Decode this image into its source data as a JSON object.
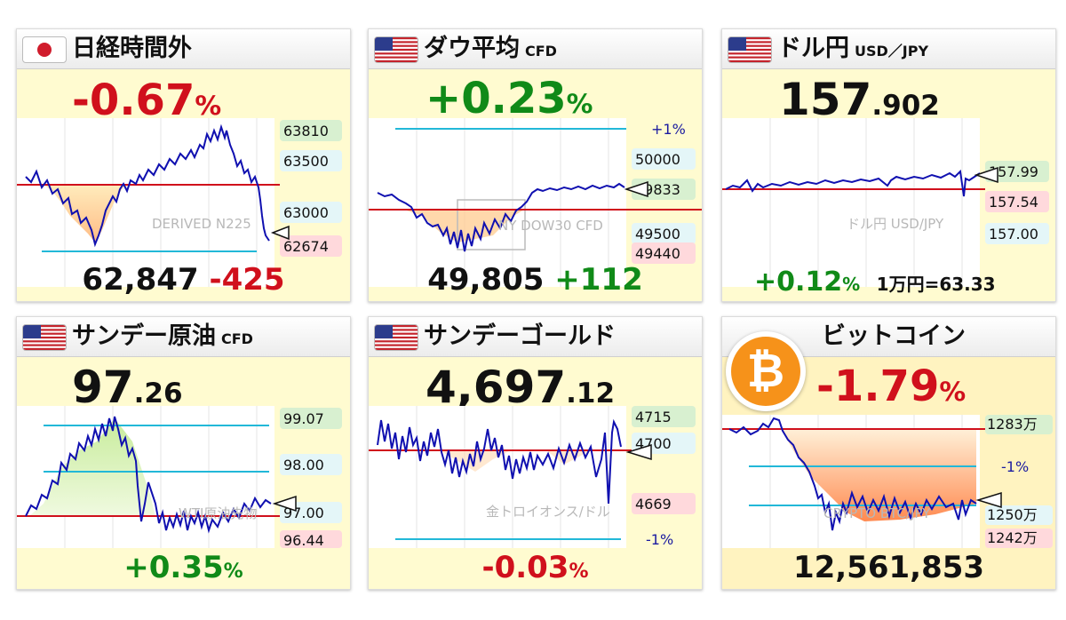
{
  "cards": [
    {
      "title": "日経時間外",
      "subtitle": "",
      "change_pct": "-0.67",
      "pct_sign": "%",
      "price": "62,847",
      "diff": "-425",
      "watermark": "DERIVED N225",
      "tags": [
        "63810",
        "63500",
        "63000",
        "62674"
      ]
    },
    {
      "title": "ダウ平均",
      "subtitle": "CFD",
      "change_pct": "+0.23",
      "pct_sign": "%",
      "price": "49,805",
      "diff": "+112",
      "watermark": "NY DOW30 CFD",
      "pct_label": "+1%",
      "tags": [
        "50000",
        "49833",
        "49500",
        "49440"
      ]
    },
    {
      "title": "ドル円",
      "subtitle": "USD／JPY",
      "price_int": "157",
      "price_dec": ".902",
      "change_pct": "+0.12",
      "pct_sign": "%",
      "note": "1万円=63.33",
      "watermark": "ドル円 USD/JPY",
      "tags": [
        "157.99",
        "157.54",
        "157.00"
      ]
    },
    {
      "title": "サンデー原油",
      "subtitle": "CFD",
      "price_int": "97",
      "price_dec": ".26",
      "change_pct": "+0.35",
      "pct_sign": "%",
      "watermark": "WTI原油先物",
      "tags": [
        "99.07",
        "98.00",
        "97.00",
        "96.44"
      ]
    },
    {
      "title": "サンデーゴールド",
      "subtitle": "",
      "price_int": "4,697",
      "price_dec": ".12",
      "change_pct": "-0.03",
      "pct_sign": "%",
      "watermark": "金トロイオンス/ドル",
      "pct_label": "-1%",
      "tags": [
        "4715",
        "4700",
        "4669"
      ]
    },
    {
      "title": "ビットコイン",
      "subtitle": "",
      "change_pct": "-1.79",
      "pct_sign": "%",
      "price": "12,561,853",
      "watermark": "CRYPTO BTC/JPY",
      "pct_label": "-1%",
      "tags": [
        "1283万",
        "1250万",
        "1242万"
      ],
      "icon": "bitcoin-icon"
    }
  ],
  "colors": {
    "up": "#108a18",
    "down": "#d0101c",
    "line": "#1010b0",
    "baseline": "#d0101c",
    "guide": "#22b8d8",
    "card_bg": "#fffbd0"
  }
}
